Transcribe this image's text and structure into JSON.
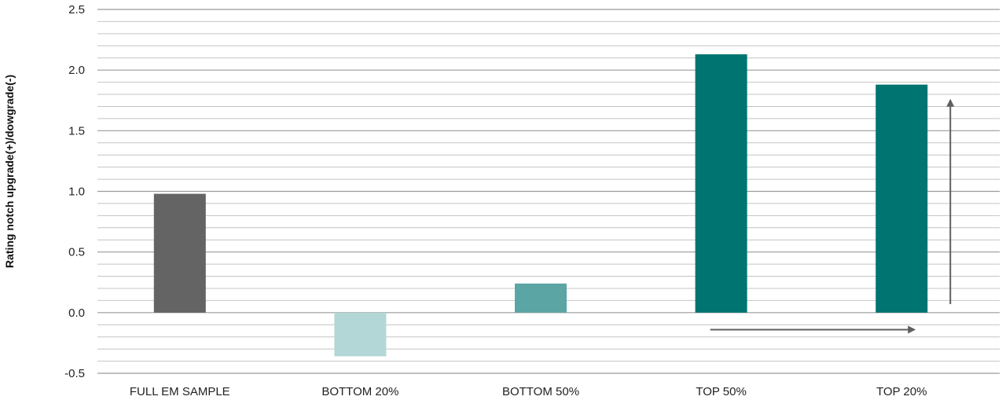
{
  "chart_data": {
    "type": "bar",
    "ylabel": "Rating notch upgrade(+)/dowgrade(-)",
    "ylim": [
      -0.5,
      2.5
    ],
    "yticks": [
      "2.5",
      "2.0",
      "1.5",
      "1.0",
      "0.5",
      "0.0",
      "-0.5"
    ],
    "ytick_values": [
      2.5,
      2.0,
      1.5,
      1.0,
      0.5,
      0.0,
      -0.5
    ],
    "minor_grid_step": 0.1,
    "grid": true,
    "categories": [
      "FULL EM SAMPLE",
      "BOTTOM 20%",
      "BOTTOM 50%",
      "TOP 50%",
      "TOP 20%"
    ],
    "values": [
      0.98,
      -0.36,
      0.24,
      2.13,
      1.88
    ],
    "colors": [
      "#646464",
      "#b3d7d6",
      "#5ba5a5",
      "#007470",
      "#007470"
    ],
    "annotations": [
      {
        "type": "arrow",
        "direction": "right",
        "color": "#5f5f5f"
      },
      {
        "type": "arrow",
        "direction": "up",
        "color": "#5f5f5f"
      }
    ]
  }
}
